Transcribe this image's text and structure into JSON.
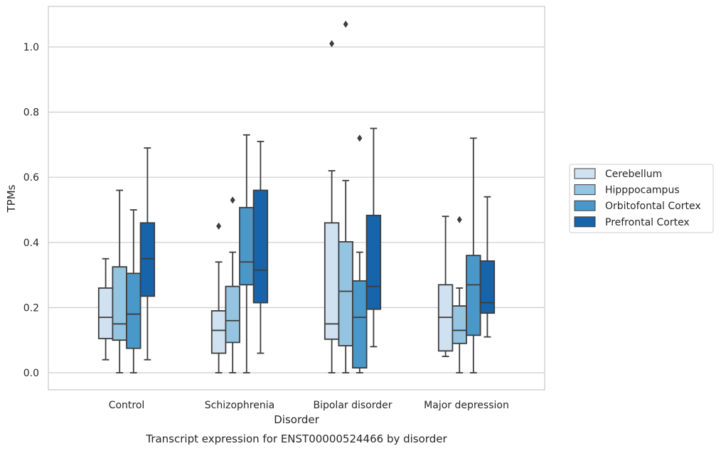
{
  "chart_data": {
    "type": "box",
    "title": "",
    "caption": "Transcript expression for ENST00000524466 by disorder",
    "xlabel": "Disorder",
    "ylabel": "TPMs",
    "ylim": [
      -0.05,
      1.13
    ],
    "yticks": [
      0.0,
      0.2,
      0.4,
      0.6,
      0.8,
      1.0
    ],
    "ytick_labels": [
      "0.0",
      "0.2",
      "0.4",
      "0.6",
      "0.8",
      "1.0"
    ],
    "grid": "horizontal",
    "legend_position": "right",
    "categories": [
      "Control",
      "Schizophrenia",
      "Bipolar disorder",
      "Major depression"
    ],
    "series": [
      {
        "name": "Cerebellum",
        "color": "#d0e1f2",
        "boxes": [
          {
            "whislo": 0.04,
            "q1": 0.105,
            "med": 0.17,
            "q3": 0.26,
            "whishi": 0.35,
            "fliers": []
          },
          {
            "whislo": 0.0,
            "q1": 0.06,
            "med": 0.13,
            "q3": 0.19,
            "whishi": 0.34,
            "fliers": [
              0.45
            ]
          },
          {
            "whislo": 0.0,
            "q1": 0.103,
            "med": 0.15,
            "q3": 0.46,
            "whishi": 0.62,
            "fliers": [
              1.01
            ]
          },
          {
            "whislo": 0.05,
            "q1": 0.067,
            "med": 0.17,
            "q3": 0.27,
            "whishi": 0.48,
            "fliers": []
          }
        ]
      },
      {
        "name": "Hipppocampus",
        "color": "#94c4df",
        "boxes": [
          {
            "whislo": 0.0,
            "q1": 0.1,
            "med": 0.15,
            "q3": 0.325,
            "whishi": 0.56,
            "fliers": []
          },
          {
            "whislo": 0.0,
            "q1": 0.093,
            "med": 0.16,
            "q3": 0.265,
            "whishi": 0.37,
            "fliers": [
              0.53
            ]
          },
          {
            "whislo": 0.0,
            "q1": 0.083,
            "med": 0.25,
            "q3": 0.402,
            "whishi": 0.59,
            "fliers": [
              1.07
            ]
          },
          {
            "whislo": 0.0,
            "q1": 0.09,
            "med": 0.13,
            "q3": 0.205,
            "whishi": 0.26,
            "fliers": [
              0.47
            ]
          }
        ]
      },
      {
        "name": "Orbitofontal Cortex",
        "color": "#4a98c9",
        "boxes": [
          {
            "whislo": 0.0,
            "q1": 0.075,
            "med": 0.18,
            "q3": 0.305,
            "whishi": 0.5,
            "fliers": []
          },
          {
            "whislo": 0.0,
            "q1": 0.27,
            "med": 0.34,
            "q3": 0.507,
            "whishi": 0.73,
            "fliers": []
          },
          {
            "whislo": 0.0,
            "q1": 0.015,
            "med": 0.17,
            "q3": 0.282,
            "whishi": 0.37,
            "fliers": [
              0.72
            ]
          },
          {
            "whislo": 0.0,
            "q1": 0.115,
            "med": 0.27,
            "q3": 0.36,
            "whishi": 0.72,
            "fliers": []
          }
        ]
      },
      {
        "name": "Prefrontal Cortex",
        "color": "#1764ab",
        "boxes": [
          {
            "whislo": 0.04,
            "q1": 0.235,
            "med": 0.35,
            "q3": 0.46,
            "whishi": 0.69,
            "fliers": []
          },
          {
            "whislo": 0.06,
            "q1": 0.215,
            "med": 0.315,
            "q3": 0.56,
            "whishi": 0.71,
            "fliers": []
          },
          {
            "whislo": 0.08,
            "q1": 0.195,
            "med": 0.265,
            "q3": 0.483,
            "whishi": 0.75,
            "fliers": []
          },
          {
            "whislo": 0.11,
            "q1": 0.183,
            "med": 0.215,
            "q3": 0.343,
            "whishi": 0.54,
            "fliers": []
          }
        ]
      }
    ]
  }
}
